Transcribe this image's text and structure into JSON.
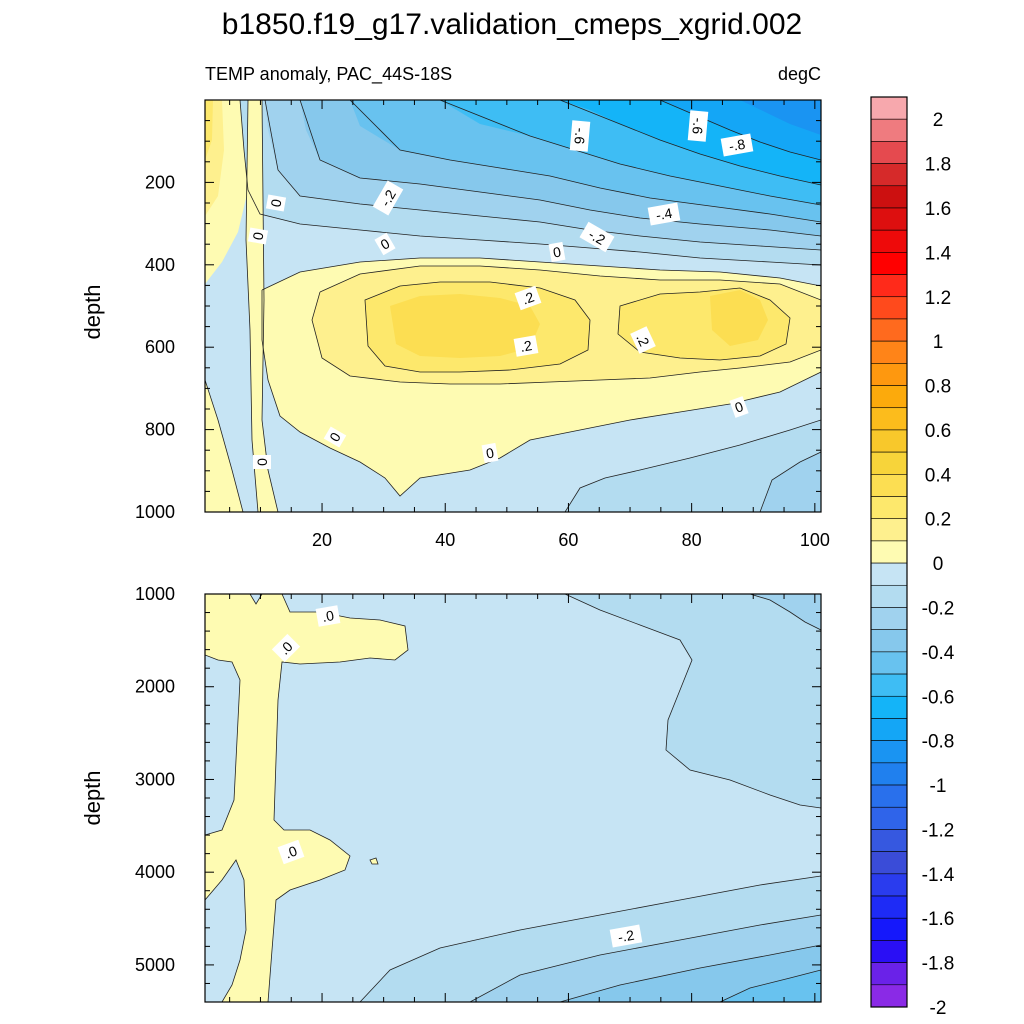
{
  "title": "b1850.f19_g17.validation_cmeps_xgrid.002",
  "chart_data": {
    "type": "contour",
    "subtitle_left": "TEMP anomaly, PAC_44S-18S",
    "subtitle_right": "degC",
    "xlabel": "",
    "ylabel_top": "depth",
    "ylabel_bottom": "depth",
    "xlim": [
      1,
      101
    ],
    "x_ticks": [
      20,
      40,
      60,
      80,
      100
    ],
    "ylim_top": [
      0,
      1000
    ],
    "y_ticks_top": [
      200,
      400,
      600,
      800,
      1000
    ],
    "ylim_bottom": [
      1000,
      5400
    ],
    "y_ticks_bottom": [
      1000,
      2000,
      3000,
      4000,
      5000
    ],
    "colorbar": {
      "unit": "degC",
      "levels": [
        "2",
        "1.8",
        "1.6",
        "1.4",
        "1.2",
        "1",
        "0.8",
        "0.6",
        "0.4",
        "0.2",
        "0",
        "-0.2",
        "-0.4",
        "-0.6",
        "-0.8",
        "-1",
        "-1.2",
        "-1.4",
        "-1.6",
        "-1.8",
        "-2"
      ],
      "colors": [
        "#f7a8ad",
        "#ef7b7f",
        "#e54a4f",
        "#d62a2a",
        "#cc1010",
        "#dd0f0f",
        "#ee0a0a",
        "#ff0000",
        "#ff2a1a",
        "#ff4a1c",
        "#ff6a1e",
        "#ff8418",
        "#fe980f",
        "#fcaa0c",
        "#fcbc1c",
        "#f8c82b",
        "#f7d43a",
        "#fcde52",
        "#fde86c",
        "#fef08e",
        "#fefbb2",
        "#c6e4f4",
        "#b3dcf0",
        "#a0d2ee",
        "#86c8ec",
        "#68c2ef",
        "#3ebdf4",
        "#14b4f8",
        "#14a6f6",
        "#1a94f2",
        "#2080ee",
        "#2970ec",
        "#2f64ea",
        "#3658e0",
        "#3a4cd8",
        "#2a3cee",
        "#1e2bf6",
        "#1518fb",
        "#2a0ff5",
        "#6a22e8",
        "#8a2ae6"
      ]
    },
    "contour_labels_top": [
      "0",
      "0",
      "-.2",
      "0",
      "-.6",
      "-.6",
      "-.8",
      "-.4",
      "-.2",
      "0",
      ".2",
      ".2",
      ".2",
      "0",
      "0",
      "0",
      "0"
    ],
    "contour_labels_bottom": [
      ".0",
      ".0",
      ".0",
      "-.2"
    ]
  }
}
